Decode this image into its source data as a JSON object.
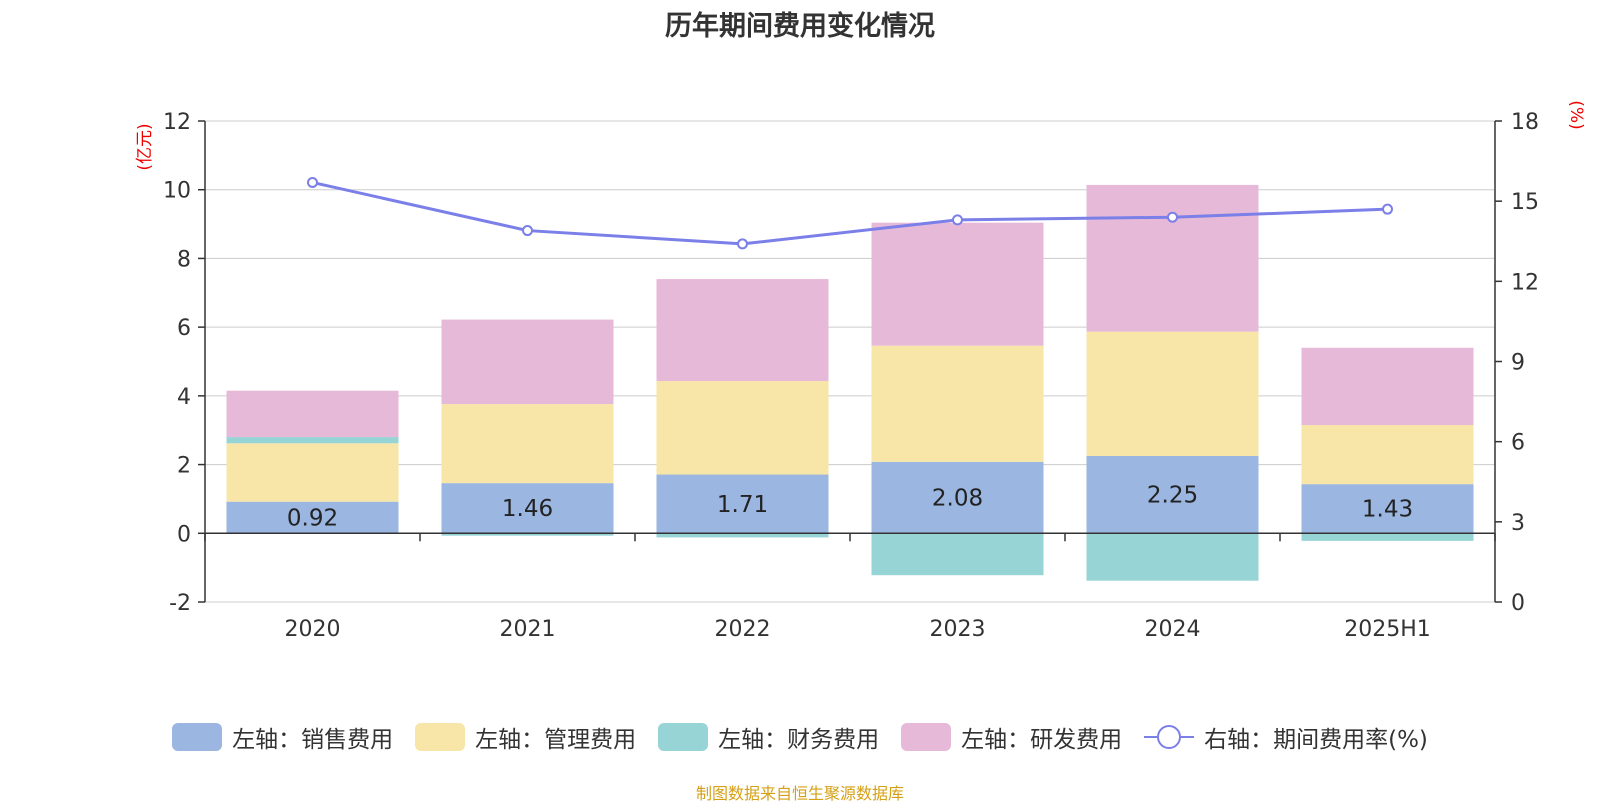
{
  "title": "历年期间费用变化情况",
  "source": "制图数据来自恒生聚源数据库",
  "chart_data": {
    "type": "bar",
    "stacked": true,
    "categories": [
      "2020",
      "2021",
      "2022",
      "2023",
      "2024",
      "2025H1"
    ],
    "left_axis": {
      "unit_label": "(亿元)",
      "ylim": [
        -2,
        12
      ],
      "ticks": [
        "-2",
        "0",
        "2",
        "4",
        "6",
        "8",
        "10",
        "12"
      ]
    },
    "right_axis": {
      "unit_label": "(%)",
      "ylim": [
        0,
        18
      ],
      "ticks": [
        "0",
        "3",
        "6",
        "9",
        "12",
        "15",
        "18"
      ]
    },
    "grid": true,
    "legend_position": "bottom",
    "series": [
      {
        "name": "左轴：销售费用",
        "axis": "left",
        "color": "#9ab6e1",
        "values": [
          0.92,
          1.46,
          1.71,
          2.08,
          2.25,
          1.43
        ],
        "labels": [
          "0.92",
          "1.46",
          "1.71",
          "2.08",
          "2.25",
          "1.43"
        ]
      },
      {
        "name": "左轴：管理费用",
        "axis": "left",
        "color": "#f7e6a7",
        "values": [
          1.7,
          2.3,
          2.72,
          3.38,
          3.62,
          1.72
        ]
      },
      {
        "name": "左轴：财务费用",
        "axis": "left",
        "color": "#96d4d5",
        "values": [
          0.18,
          -0.07,
          -0.12,
          -1.22,
          -1.38,
          -0.22
        ]
      },
      {
        "name": "左轴：研发费用",
        "axis": "left",
        "color": "#e7b9d9",
        "values": [
          1.35,
          2.46,
          2.97,
          3.58,
          4.27,
          2.25
        ]
      },
      {
        "name": "右轴：期间费用率(%)",
        "axis": "right",
        "type": "line",
        "color": "#7b7fe8",
        "values": [
          15.7,
          13.9,
          13.4,
          14.3,
          14.4,
          14.7
        ]
      }
    ]
  }
}
